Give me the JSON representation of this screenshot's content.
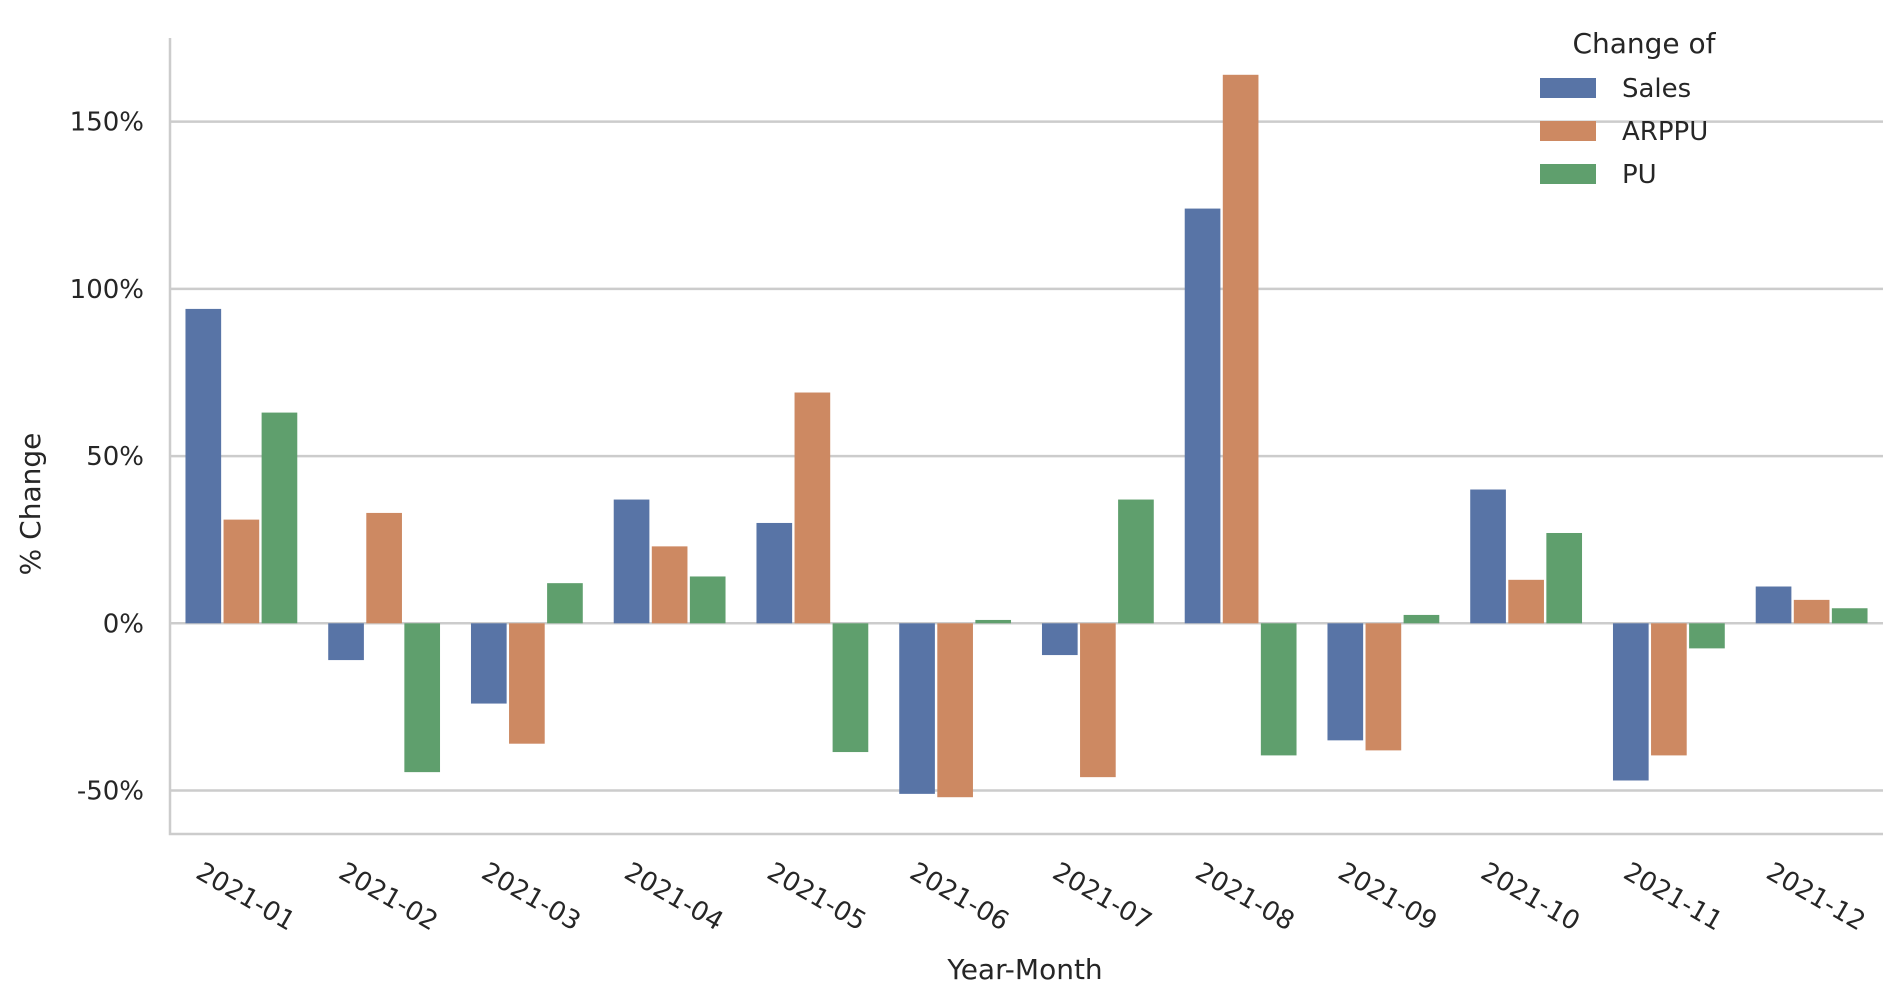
{
  "chart_data": {
    "type": "bar",
    "title": "",
    "xlabel": "Year-Month",
    "ylabel": "% Change",
    "categories": [
      "2021-01",
      "2021-02",
      "2021-03",
      "2021-04",
      "2021-05",
      "2021-06",
      "2021-07",
      "2021-08",
      "2021-09",
      "2021-10",
      "2021-11",
      "2021-12"
    ],
    "series": [
      {
        "name": "Sales",
        "color": "#5874a6",
        "values": [
          94,
          -11,
          -24,
          37,
          30,
          -51,
          -9.5,
          124,
          -35,
          40,
          -47,
          11
        ]
      },
      {
        "name": "ARPPU",
        "color": "#cd8962",
        "values": [
          31,
          33,
          -36,
          23,
          69,
          -52,
          -46,
          164,
          -38,
          13,
          -39.5,
          7
        ]
      },
      {
        "name": "PU",
        "color": "#5f9f6d",
        "values": [
          63,
          -44.5,
          12,
          14,
          -38.5,
          1,
          37,
          -39.5,
          2.5,
          27,
          -7.5,
          4.5
        ]
      }
    ],
    "ylim": [
      -63,
      175
    ],
    "yticks": [
      -50,
      0,
      50,
      100,
      150
    ],
    "ytick_labels": [
      "-50%",
      "0%",
      "50%",
      "100%",
      "150%"
    ],
    "legend": {
      "title": "Change of",
      "position": "top-right"
    },
    "grid": "horizontal"
  }
}
